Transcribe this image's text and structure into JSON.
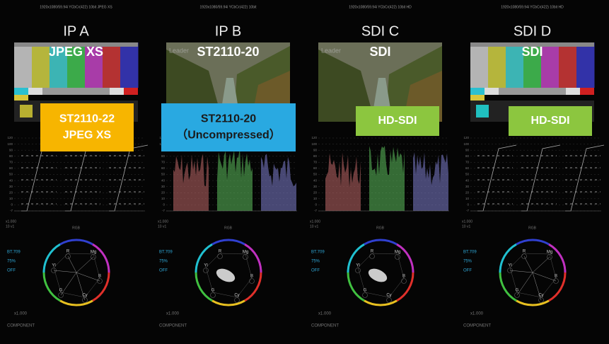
{
  "panels": [
    {
      "header": "1920x1080/59.94i YCbCr(422) 10bit JPEG XS",
      "title": "IP A",
      "overlay": "JPEG XS",
      "picture": "bars",
      "badge": [
        "ST2110-22",
        "JPEG XS"
      ],
      "badge_color": "#f7b500"
    },
    {
      "header": "1920x1080/59.94i YCbCr(422) 10bit",
      "title": "IP B",
      "overlay": "ST2110-20",
      "watermark": "Leader",
      "picture": "scene",
      "badge": [
        "ST2110-20",
        "（Uncompressed）"
      ],
      "badge_color": "#29a9e1"
    },
    {
      "header": "1920x1080/59.94i YCbCr(422) 10bit HD",
      "title": "SDI C",
      "overlay": "SDI",
      "watermark": "Leader",
      "picture": "scene",
      "badge": [
        "HD-SDI"
      ],
      "badge_color": "#8cc63f"
    },
    {
      "header": "1920x1080/59.94i YCbCr(422) 10bit HD",
      "title": "SDI D",
      "overlay": "SDI",
      "picture": "bars",
      "badge": [
        "HD-SDI"
      ],
      "badge_color": "#8cc63f"
    }
  ],
  "waveform": {
    "scale": [
      "120",
      "100",
      "90",
      "80",
      "70",
      "60",
      "50",
      "40",
      "30",
      "20",
      "10",
      "0",
      "-7"
    ],
    "gain": "x1.000",
    "line": "10 v1",
    "mode": "RGB"
  },
  "vectorscope": {
    "standard": "BT.709",
    "level": "75%",
    "mode": "OFF",
    "gain": "x1.000",
    "format": "COMPONENT",
    "targets": [
      "R",
      "Mg",
      "B",
      "Cy",
      "G",
      "Yl"
    ]
  }
}
